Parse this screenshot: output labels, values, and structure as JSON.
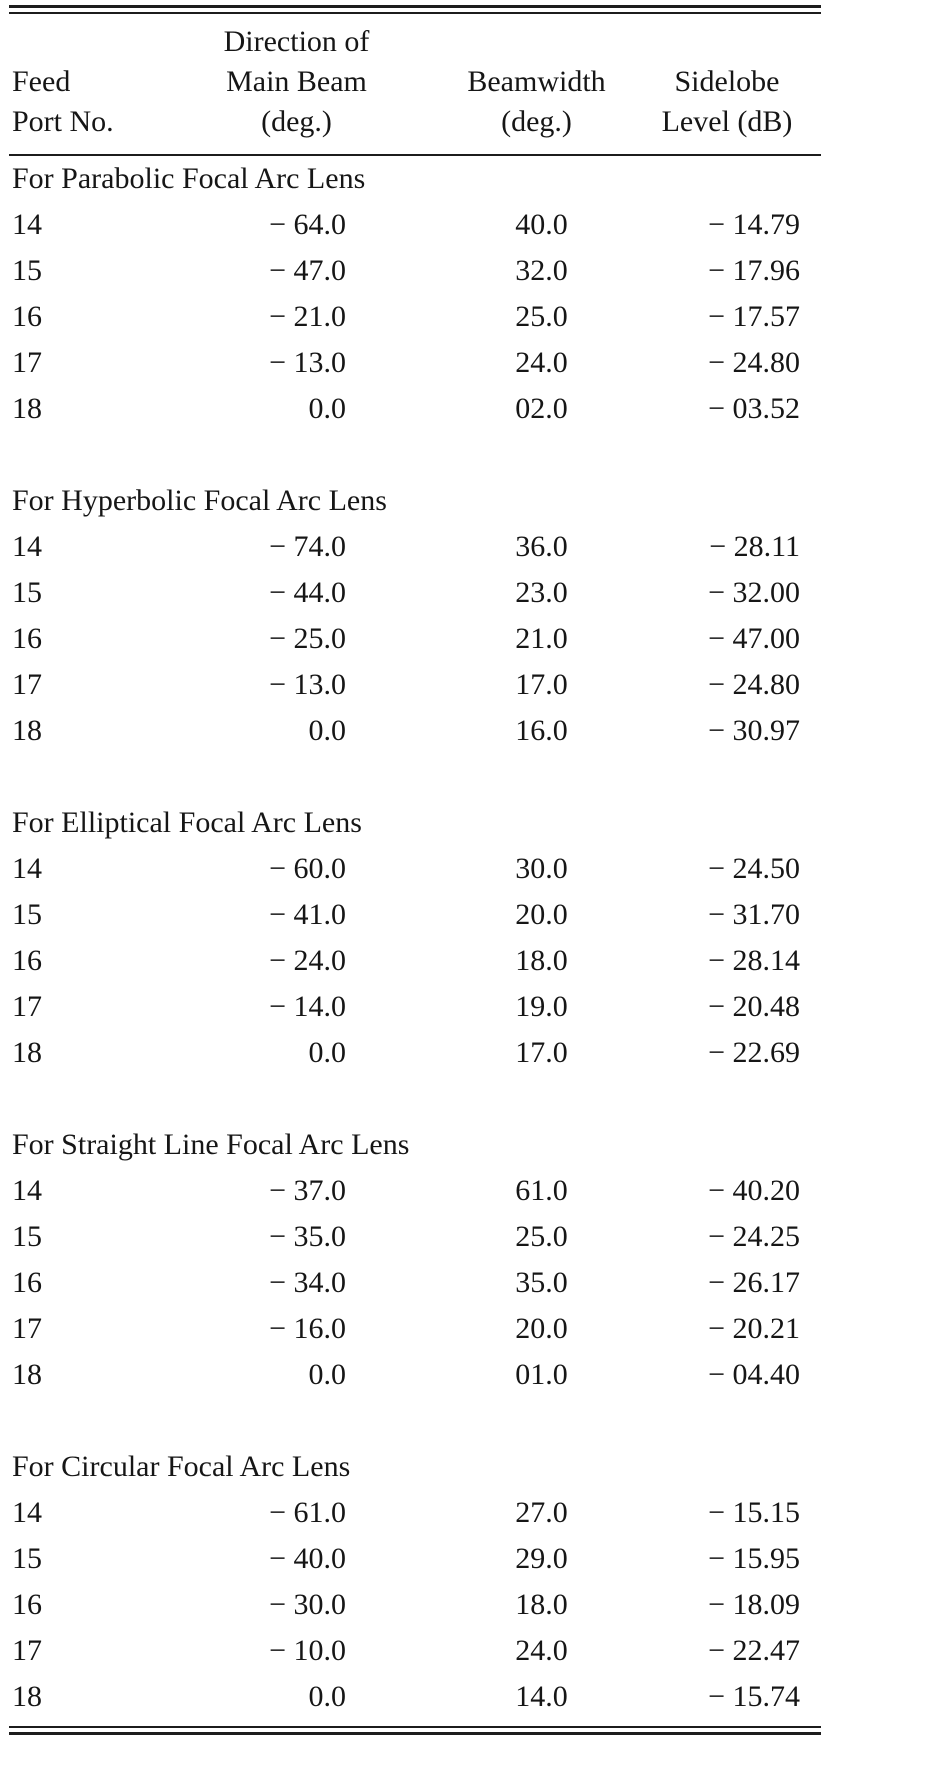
{
  "page": {
    "background_color": "#ffffff",
    "text_color": "#161616",
    "rule_color": "#1c1c1c"
  },
  "table": {
    "columns": [
      {
        "id": "feed-port",
        "lines": [
          "Feed",
          "Port No."
        ]
      },
      {
        "id": "direction",
        "lines": [
          "Direction of",
          "Main Beam",
          "(deg.)"
        ]
      },
      {
        "id": "beamwidth",
        "lines": [
          "Beamwidth",
          "(deg.)"
        ]
      },
      {
        "id": "sidelobe",
        "lines": [
          "Sidelobe",
          "Level (dB)"
        ]
      }
    ],
    "sections": [
      {
        "title": "For Parabolic Focal Arc Lens",
        "rows": [
          [
            "14",
            "− 64.0",
            "40.0",
            "− 14.79"
          ],
          [
            "15",
            "− 47.0",
            "32.0",
            "− 17.96"
          ],
          [
            "16",
            "− 21.0",
            "25.0",
            "− 17.57"
          ],
          [
            "17",
            "− 13.0",
            "24.0",
            "− 24.80"
          ],
          [
            "18",
            "0.0",
            "02.0",
            "− 03.52"
          ]
        ]
      },
      {
        "title": "For Hyperbolic Focal Arc Lens",
        "rows": [
          [
            "14",
            "− 74.0",
            "36.0",
            "− 28.11"
          ],
          [
            "15",
            "− 44.0",
            "23.0",
            "− 32.00"
          ],
          [
            "16",
            "− 25.0",
            "21.0",
            "− 47.00"
          ],
          [
            "17",
            "− 13.0",
            "17.0",
            "− 24.80"
          ],
          [
            "18",
            "0.0",
            "16.0",
            "− 30.97"
          ]
        ]
      },
      {
        "title": "For Elliptical Focal Arc Lens",
        "rows": [
          [
            "14",
            "− 60.0",
            "30.0",
            "− 24.50"
          ],
          [
            "15",
            "− 41.0",
            "20.0",
            "− 31.70"
          ],
          [
            "16",
            "− 24.0",
            "18.0",
            "− 28.14"
          ],
          [
            "17",
            "− 14.0",
            "19.0",
            "− 20.48"
          ],
          [
            "18",
            "0.0",
            "17.0",
            "− 22.69"
          ]
        ]
      },
      {
        "title": "For Straight Line Focal Arc Lens",
        "rows": [
          [
            "14",
            "− 37.0",
            "61.0",
            "− 40.20"
          ],
          [
            "15",
            "− 35.0",
            "25.0",
            "− 24.25"
          ],
          [
            "16",
            "− 34.0",
            "35.0",
            "− 26.17"
          ],
          [
            "17",
            "− 16.0",
            "20.0",
            "− 20.21"
          ],
          [
            "18",
            "0.0",
            "01.0",
            "− 04.40"
          ]
        ]
      },
      {
        "title": "For Circular Focal Arc Lens",
        "rows": [
          [
            "14",
            "− 61.0",
            "27.0",
            "− 15.15"
          ],
          [
            "15",
            "− 40.0",
            "29.0",
            "− 15.95"
          ],
          [
            "16",
            "− 30.0",
            "18.0",
            "− 18.09"
          ],
          [
            "17",
            "− 10.0",
            "24.0",
            "− 22.47"
          ],
          [
            "18",
            "0.0",
            "14.0",
            "− 15.74"
          ]
        ]
      }
    ]
  }
}
